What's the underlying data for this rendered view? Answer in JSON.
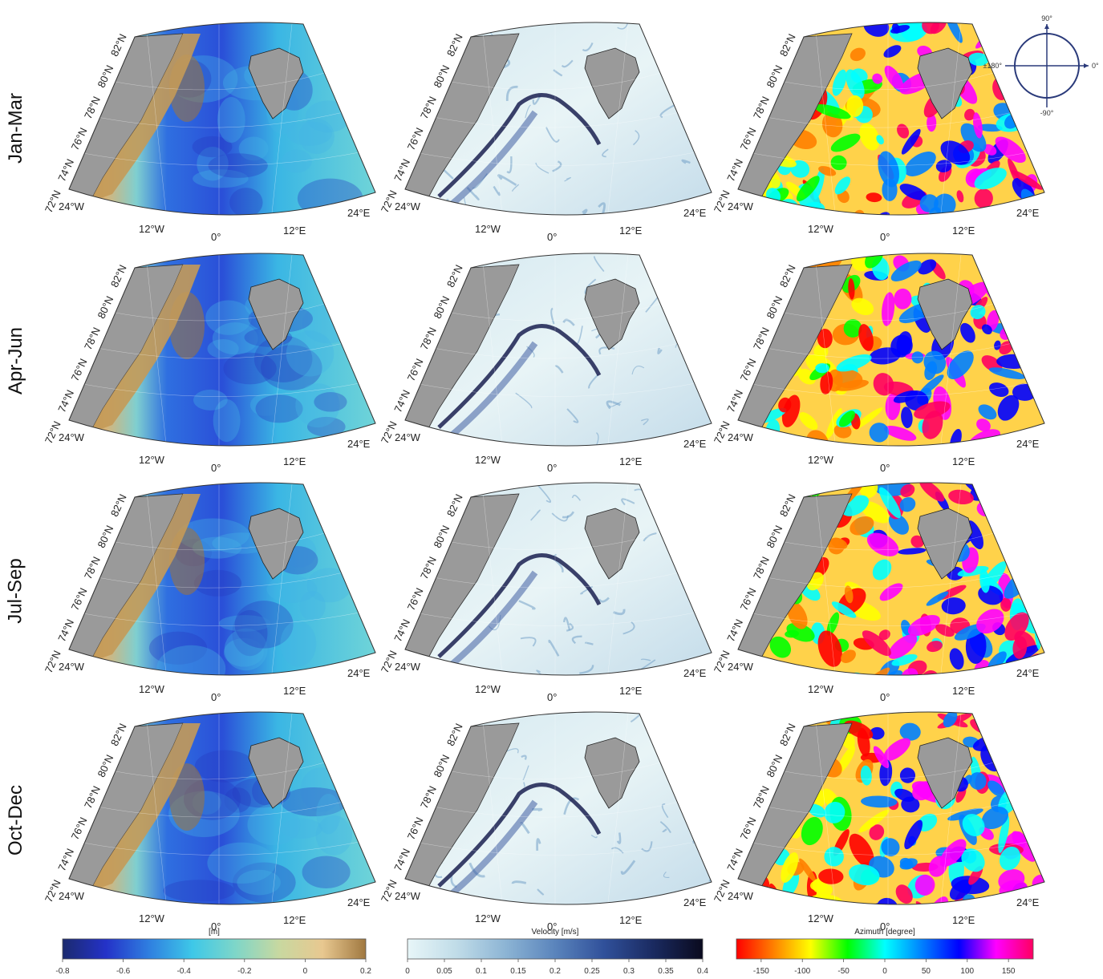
{
  "rows": [
    "Jan-Mar",
    "Apr-Jun",
    "Jul-Sep",
    "Oct-Dec"
  ],
  "lat_labels": [
    "72°N",
    "74°N",
    "76°N",
    "78°N",
    "80°N",
    "82°N"
  ],
  "lon_labels": [
    "24°W",
    "12°W",
    "0°",
    "12°E",
    "24°E"
  ],
  "compass": {
    "top": "90°",
    "bottom": "-90°",
    "left": "±180°",
    "right": "0°"
  },
  "colorbars": [
    {
      "label": "[m]",
      "min": -0.8,
      "max": 0.2,
      "ticks": [
        "-0.8",
        "-0.6",
        "-0.4",
        "-0.2",
        "0",
        "0.2"
      ],
      "colors": [
        "#1b2a6e",
        "#2432c8",
        "#2f7fe0",
        "#3ec8e8",
        "#7fd6c8",
        "#c8d8a0",
        "#e8c890",
        "#a07840"
      ]
    },
    {
      "label": "Velocity [m/s]",
      "min": 0,
      "max": 0.4,
      "ticks": [
        "0",
        "0.05",
        "0.1",
        "0.15",
        "0.2",
        "0.25",
        "0.3",
        "0.35",
        "0.4"
      ],
      "colors": [
        "#e8f6f8",
        "#c0dce8",
        "#8cb4d4",
        "#5a84bc",
        "#30509a",
        "#1a2a60",
        "#0a0a1e"
      ]
    },
    {
      "label": "Azimuth [degree]",
      "min": -180,
      "max": 180,
      "ticks": [
        "-150",
        "-100",
        "-50",
        "0",
        "50",
        "100",
        "150"
      ],
      "colors": [
        "#ff0000",
        "#ff8000",
        "#ffff00",
        "#00ff00",
        "#00ffff",
        "#0080ff",
        "#0000ff",
        "#ff00ff",
        "#ff0060"
      ]
    }
  ],
  "colors": {
    "land": "#9a9a9a",
    "ssh_mean": "#3f9fe0",
    "vel_mean": "#c8e2ec"
  }
}
